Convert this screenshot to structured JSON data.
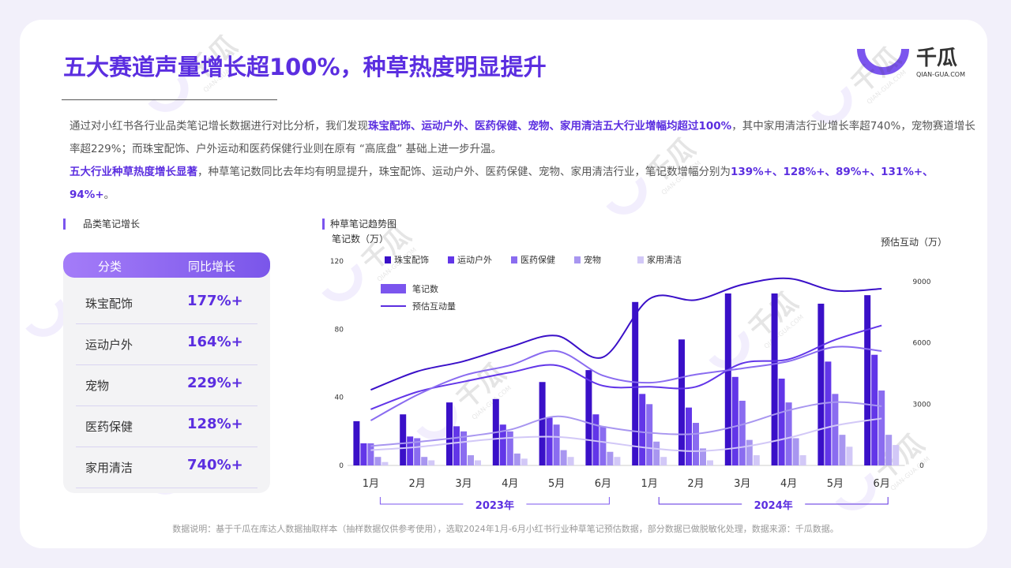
{
  "header": {
    "title": "五大赛道声量增长超100%，种草热度明显提升",
    "logo": "千瓜",
    "logo_sub": "QIAN-GUA.COM"
  },
  "watermark": {
    "text": "千瓜",
    "sub": "QIAN-GUA.COM"
  },
  "summary": [
    [
      {
        "text": "通过对小红书各行业品类笔记增长数据进行对比分析，我们发现"
      },
      {
        "text": "珠宝配饰、运动户外、医药保健、宠物、家用清洁五大行业增幅均超过100%",
        "bold": true
      },
      {
        "text": "，其中家用清洁行业增长率超740%，宠物赛道增长率超229%；而珠宝配饰、户外运动和医药保健行业则在原有 “高底盘” 基础上进一步升温。"
      }
    ],
    [
      {
        "text": "五大行业种草热度增长显著",
        "bold": true
      },
      {
        "text": "，种草笔记数同比去年均有明显提升，珠宝配饰、运动户外、医药保健、宠物、家用清洁行业，笔记数增幅分别为"
      },
      {
        "text": "139%+、128%+、89%+、131%+、94%+",
        "bold": true
      },
      {
        "text": "。"
      }
    ]
  ],
  "table": {
    "title": "品类笔记增长",
    "header": [
      "分类",
      "同比增长"
    ],
    "rows": [
      [
        "珠宝配饰",
        "177%+"
      ],
      [
        "运动户外",
        "164%+"
      ],
      [
        "宠物",
        "229%+"
      ],
      [
        "医药保健",
        "128%+"
      ],
      [
        "家用清洁",
        "740%+"
      ]
    ]
  },
  "chart_data": {
    "type": "bar-line",
    "title": "种草笔记趋势图",
    "y_label": "笔记数（万）",
    "y2_label": "预估互动（万）",
    "categories": [
      "1月",
      "2月",
      "3月",
      "4月",
      "5月",
      "6月",
      "1月",
      "2月",
      "3月",
      "4月",
      "5月",
      "6月"
    ],
    "groups": [
      "2023年",
      "2024年"
    ],
    "ylim": [
      0,
      120
    ],
    "yticks": [
      0,
      40,
      80,
      120
    ],
    "y2lim": [
      0,
      10000
    ],
    "y2ticks": [
      0,
      3000,
      6000,
      9000
    ],
    "series": [
      {
        "name": "珠宝配饰",
        "color": "#3a10c8",
        "values": [
          26,
          30,
          37,
          39,
          49,
          56,
          96,
          74,
          101,
          101,
          95,
          100
        ],
        "line": [
          3700,
          4600,
          5100,
          5800,
          6350,
          5300,
          8150,
          8100,
          8850,
          9150,
          8550,
          8650
        ]
      },
      {
        "name": "运动户外",
        "color": "#6236e8",
        "values": [
          13,
          17,
          23,
          24,
          28,
          30,
          42,
          34,
          52,
          51,
          61,
          65
        ],
        "line": [
          2750,
          3600,
          4100,
          4550,
          4900,
          3900,
          3850,
          3850,
          5000,
          5200,
          6150,
          6850
        ]
      },
      {
        "name": "医药保健",
        "color": "#8a6cf0",
        "values": [
          13,
          16,
          20,
          20,
          24,
          23,
          36,
          25,
          38,
          37,
          42,
          44
        ],
        "line": [
          2200,
          3450,
          4400,
          4900,
          5600,
          4400,
          4050,
          4450,
          4750,
          5100,
          5800,
          5600
        ]
      },
      {
        "name": "宠物",
        "color": "#a896f0",
        "values": [
          5,
          5,
          6,
          7,
          9,
          8,
          14,
          10,
          15,
          16,
          18,
          18
        ],
        "line": [
          950,
          1150,
          1400,
          1750,
          2400,
          1900,
          1600,
          1550,
          2000,
          2700,
          3100,
          2900
        ]
      },
      {
        "name": "家用清洁",
        "color": "#d2c8f7",
        "values": [
          2,
          3,
          3,
          4,
          5,
          5,
          5,
          3,
          6,
          6,
          11,
          12
        ],
        "line": [
          750,
          900,
          1150,
          1350,
          1400,
          1150,
          850,
          700,
          900,
          1350,
          1950,
          2300
        ]
      }
    ],
    "kind_legend": [
      "笔记数",
      "预估互动量"
    ]
  },
  "footer": "数据说明：基于千瓜在库达人数据抽取样本（抽样数据仅供参考使用），选取2024年1月-6月小红书行业种草笔记预估数据，部分数据已做脱敏化处理，数据来源：千瓜数据。"
}
